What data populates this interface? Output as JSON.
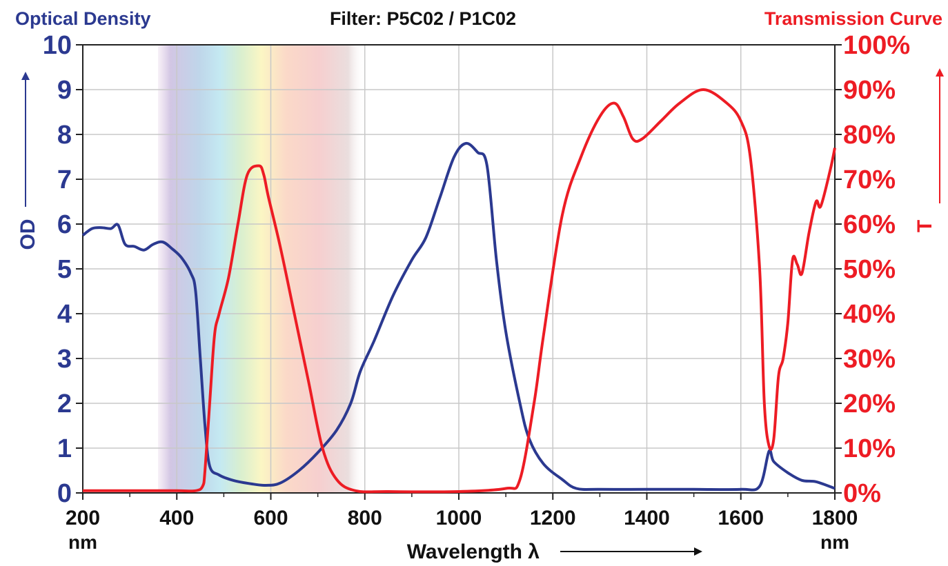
{
  "header": {
    "left_title": "Optical Density",
    "center_title": "Filter: P5C02 / P1C02",
    "right_title": "Transmission Curve"
  },
  "chart_data": {
    "type": "line",
    "title": "Filter: P5C02 / P1C02",
    "xlabel": "Wavelength λ",
    "x_unit": "nm",
    "xlim": [
      200,
      1800
    ],
    "x_ticks": [
      "200",
      "400",
      "600",
      "800",
      "1000",
      "1200",
      "1400",
      "1600",
      "1800"
    ],
    "y_left": {
      "label": "OD",
      "lim": [
        0,
        10
      ],
      "ticks": [
        "0",
        "1",
        "2",
        "3",
        "4",
        "5",
        "6",
        "7",
        "8",
        "9",
        "10"
      ]
    },
    "y_right": {
      "label": "T",
      "lim": [
        0,
        100
      ],
      "ticks": [
        "0%",
        "10%",
        "20%",
        "30%",
        "40%",
        "50%",
        "60%",
        "70%",
        "80%",
        "90%",
        "100%"
      ]
    },
    "grid": true,
    "visible_spectrum_band_nm": [
      360,
      800
    ],
    "series": [
      {
        "axis": "left",
        "color": "#2b3990",
        "points": [
          [
            200,
            5.75
          ],
          [
            220,
            5.9
          ],
          [
            240,
            5.92
          ],
          [
            260,
            5.9
          ],
          [
            275,
            5.98
          ],
          [
            290,
            5.55
          ],
          [
            310,
            5.5
          ],
          [
            330,
            5.42
          ],
          [
            350,
            5.55
          ],
          [
            370,
            5.6
          ],
          [
            390,
            5.45
          ],
          [
            410,
            5.25
          ],
          [
            430,
            4.9
          ],
          [
            440,
            4.5
          ],
          [
            450,
            3.0
          ],
          [
            460,
            1.5
          ],
          [
            470,
            0.6
          ],
          [
            490,
            0.4
          ],
          [
            520,
            0.28
          ],
          [
            560,
            0.2
          ],
          [
            590,
            0.17
          ],
          [
            620,
            0.22
          ],
          [
            660,
            0.5
          ],
          [
            700,
            0.9
          ],
          [
            740,
            1.4
          ],
          [
            770,
            2.0
          ],
          [
            790,
            2.7
          ],
          [
            820,
            3.4
          ],
          [
            860,
            4.4
          ],
          [
            900,
            5.2
          ],
          [
            930,
            5.7
          ],
          [
            960,
            6.6
          ],
          [
            990,
            7.5
          ],
          [
            1015,
            7.8
          ],
          [
            1040,
            7.6
          ],
          [
            1060,
            7.3
          ],
          [
            1080,
            5.2
          ],
          [
            1100,
            3.6
          ],
          [
            1130,
            2.0
          ],
          [
            1150,
            1.2
          ],
          [
            1180,
            0.65
          ],
          [
            1220,
            0.3
          ],
          [
            1250,
            0.1
          ],
          [
            1300,
            0.08
          ],
          [
            1400,
            0.08
          ],
          [
            1500,
            0.08
          ],
          [
            1600,
            0.08
          ],
          [
            1640,
            0.15
          ],
          [
            1660,
            0.93
          ],
          [
            1670,
            0.7
          ],
          [
            1700,
            0.45
          ],
          [
            1730,
            0.28
          ],
          [
            1760,
            0.25
          ],
          [
            1800,
            0.1
          ]
        ]
      },
      {
        "axis": "right",
        "color": "#ed1c24",
        "points": [
          [
            200,
            0.5
          ],
          [
            300,
            0.5
          ],
          [
            400,
            0.5
          ],
          [
            440,
            0.5
          ],
          [
            455,
            1.5
          ],
          [
            460,
            5
          ],
          [
            470,
            20
          ],
          [
            480,
            35
          ],
          [
            490,
            40
          ],
          [
            510,
            48
          ],
          [
            530,
            60
          ],
          [
            550,
            71
          ],
          [
            575,
            73
          ],
          [
            585,
            71
          ],
          [
            595,
            66
          ],
          [
            620,
            55
          ],
          [
            650,
            40
          ],
          [
            680,
            25
          ],
          [
            710,
            10
          ],
          [
            740,
            3
          ],
          [
            780,
            0.5
          ],
          [
            850,
            0.3
          ],
          [
            1000,
            0.3
          ],
          [
            1100,
            1
          ],
          [
            1130,
            3
          ],
          [
            1160,
            20
          ],
          [
            1180,
            35
          ],
          [
            1220,
            62
          ],
          [
            1260,
            75
          ],
          [
            1300,
            84
          ],
          [
            1330,
            87
          ],
          [
            1350,
            84
          ],
          [
            1370,
            79
          ],
          [
            1390,
            79
          ],
          [
            1430,
            83
          ],
          [
            1470,
            87
          ],
          [
            1520,
            90
          ],
          [
            1570,
            87
          ],
          [
            1600,
            83
          ],
          [
            1620,
            75
          ],
          [
            1640,
            50
          ],
          [
            1650,
            20
          ],
          [
            1660,
            10.5
          ],
          [
            1670,
            12
          ],
          [
            1680,
            26
          ],
          [
            1690,
            30
          ],
          [
            1700,
            38
          ],
          [
            1710,
            52
          ],
          [
            1720,
            51
          ],
          [
            1730,
            49
          ],
          [
            1745,
            58
          ],
          [
            1760,
            65
          ],
          [
            1770,
            64
          ],
          [
            1790,
            72
          ],
          [
            1800,
            77
          ]
        ]
      }
    ]
  }
}
